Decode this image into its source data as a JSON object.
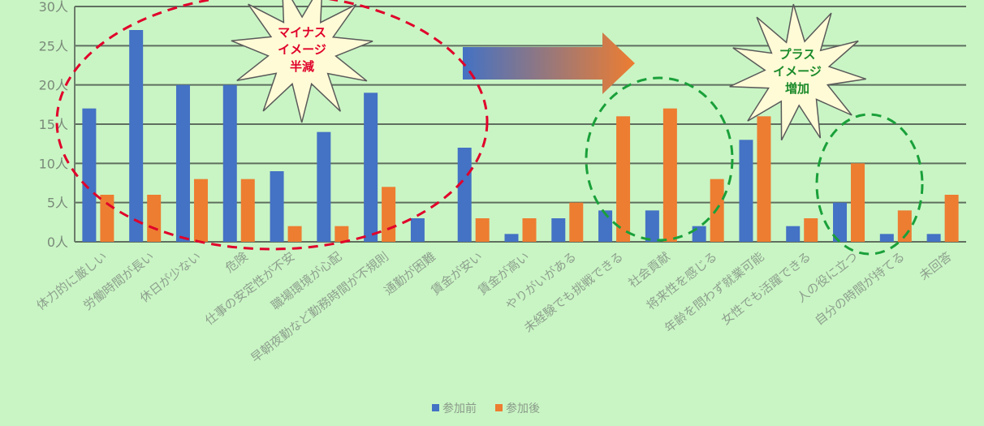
{
  "chart_data": {
    "type": "bar",
    "title": "",
    "xlabel": "",
    "ylabel": "",
    "ylim": [
      0,
      30
    ],
    "yticks": [
      "0人",
      "5人",
      "10人",
      "15人",
      "20人",
      "25人",
      "30人"
    ],
    "grid": true,
    "legend_position": "bottom",
    "categories": [
      "体力的に厳しい",
      "労働時間が長い",
      "休日が少ない",
      "危険",
      "仕事の安定性が不安",
      "職場環境が心配",
      "早朝夜勤など勤務時間が不規則",
      "通勤が困難",
      "賃金が安い",
      "賃金が高い",
      "やりがいがある",
      "未経験でも挑戦できる",
      "社会貢献",
      "将来性を感じる",
      "年齢を問わず就業可能",
      "女性でも活躍できる",
      "人の役に立つ",
      "自分の時間が持てる",
      "未回答"
    ],
    "series": [
      {
        "name": "参加前",
        "color": "#4472c4",
        "values": [
          17,
          27,
          20,
          20,
          9,
          14,
          19,
          3,
          12,
          1,
          3,
          4,
          4,
          2,
          13,
          2,
          5,
          1,
          1
        ]
      },
      {
        "name": "参加後",
        "color": "#ed7d31",
        "values": [
          6,
          6,
          8,
          8,
          2,
          2,
          7,
          0,
          3,
          3,
          5,
          16,
          17,
          8,
          16,
          3,
          10,
          4,
          6
        ]
      }
    ],
    "annotations": {
      "minus_burst": {
        "lines": [
          "マイナス",
          "イメージ",
          "半減"
        ],
        "color": "#e0002a"
      },
      "plus_burst": {
        "lines": [
          "プラス",
          "イメージ",
          "増加"
        ],
        "color": "#1a8a2a"
      },
      "arrow": {
        "from_color": "#4472c4",
        "to_color": "#ed7d31"
      },
      "minus_ellipse_color": "#e0002a",
      "plus_ellipse_color": "#1aa03a"
    }
  }
}
